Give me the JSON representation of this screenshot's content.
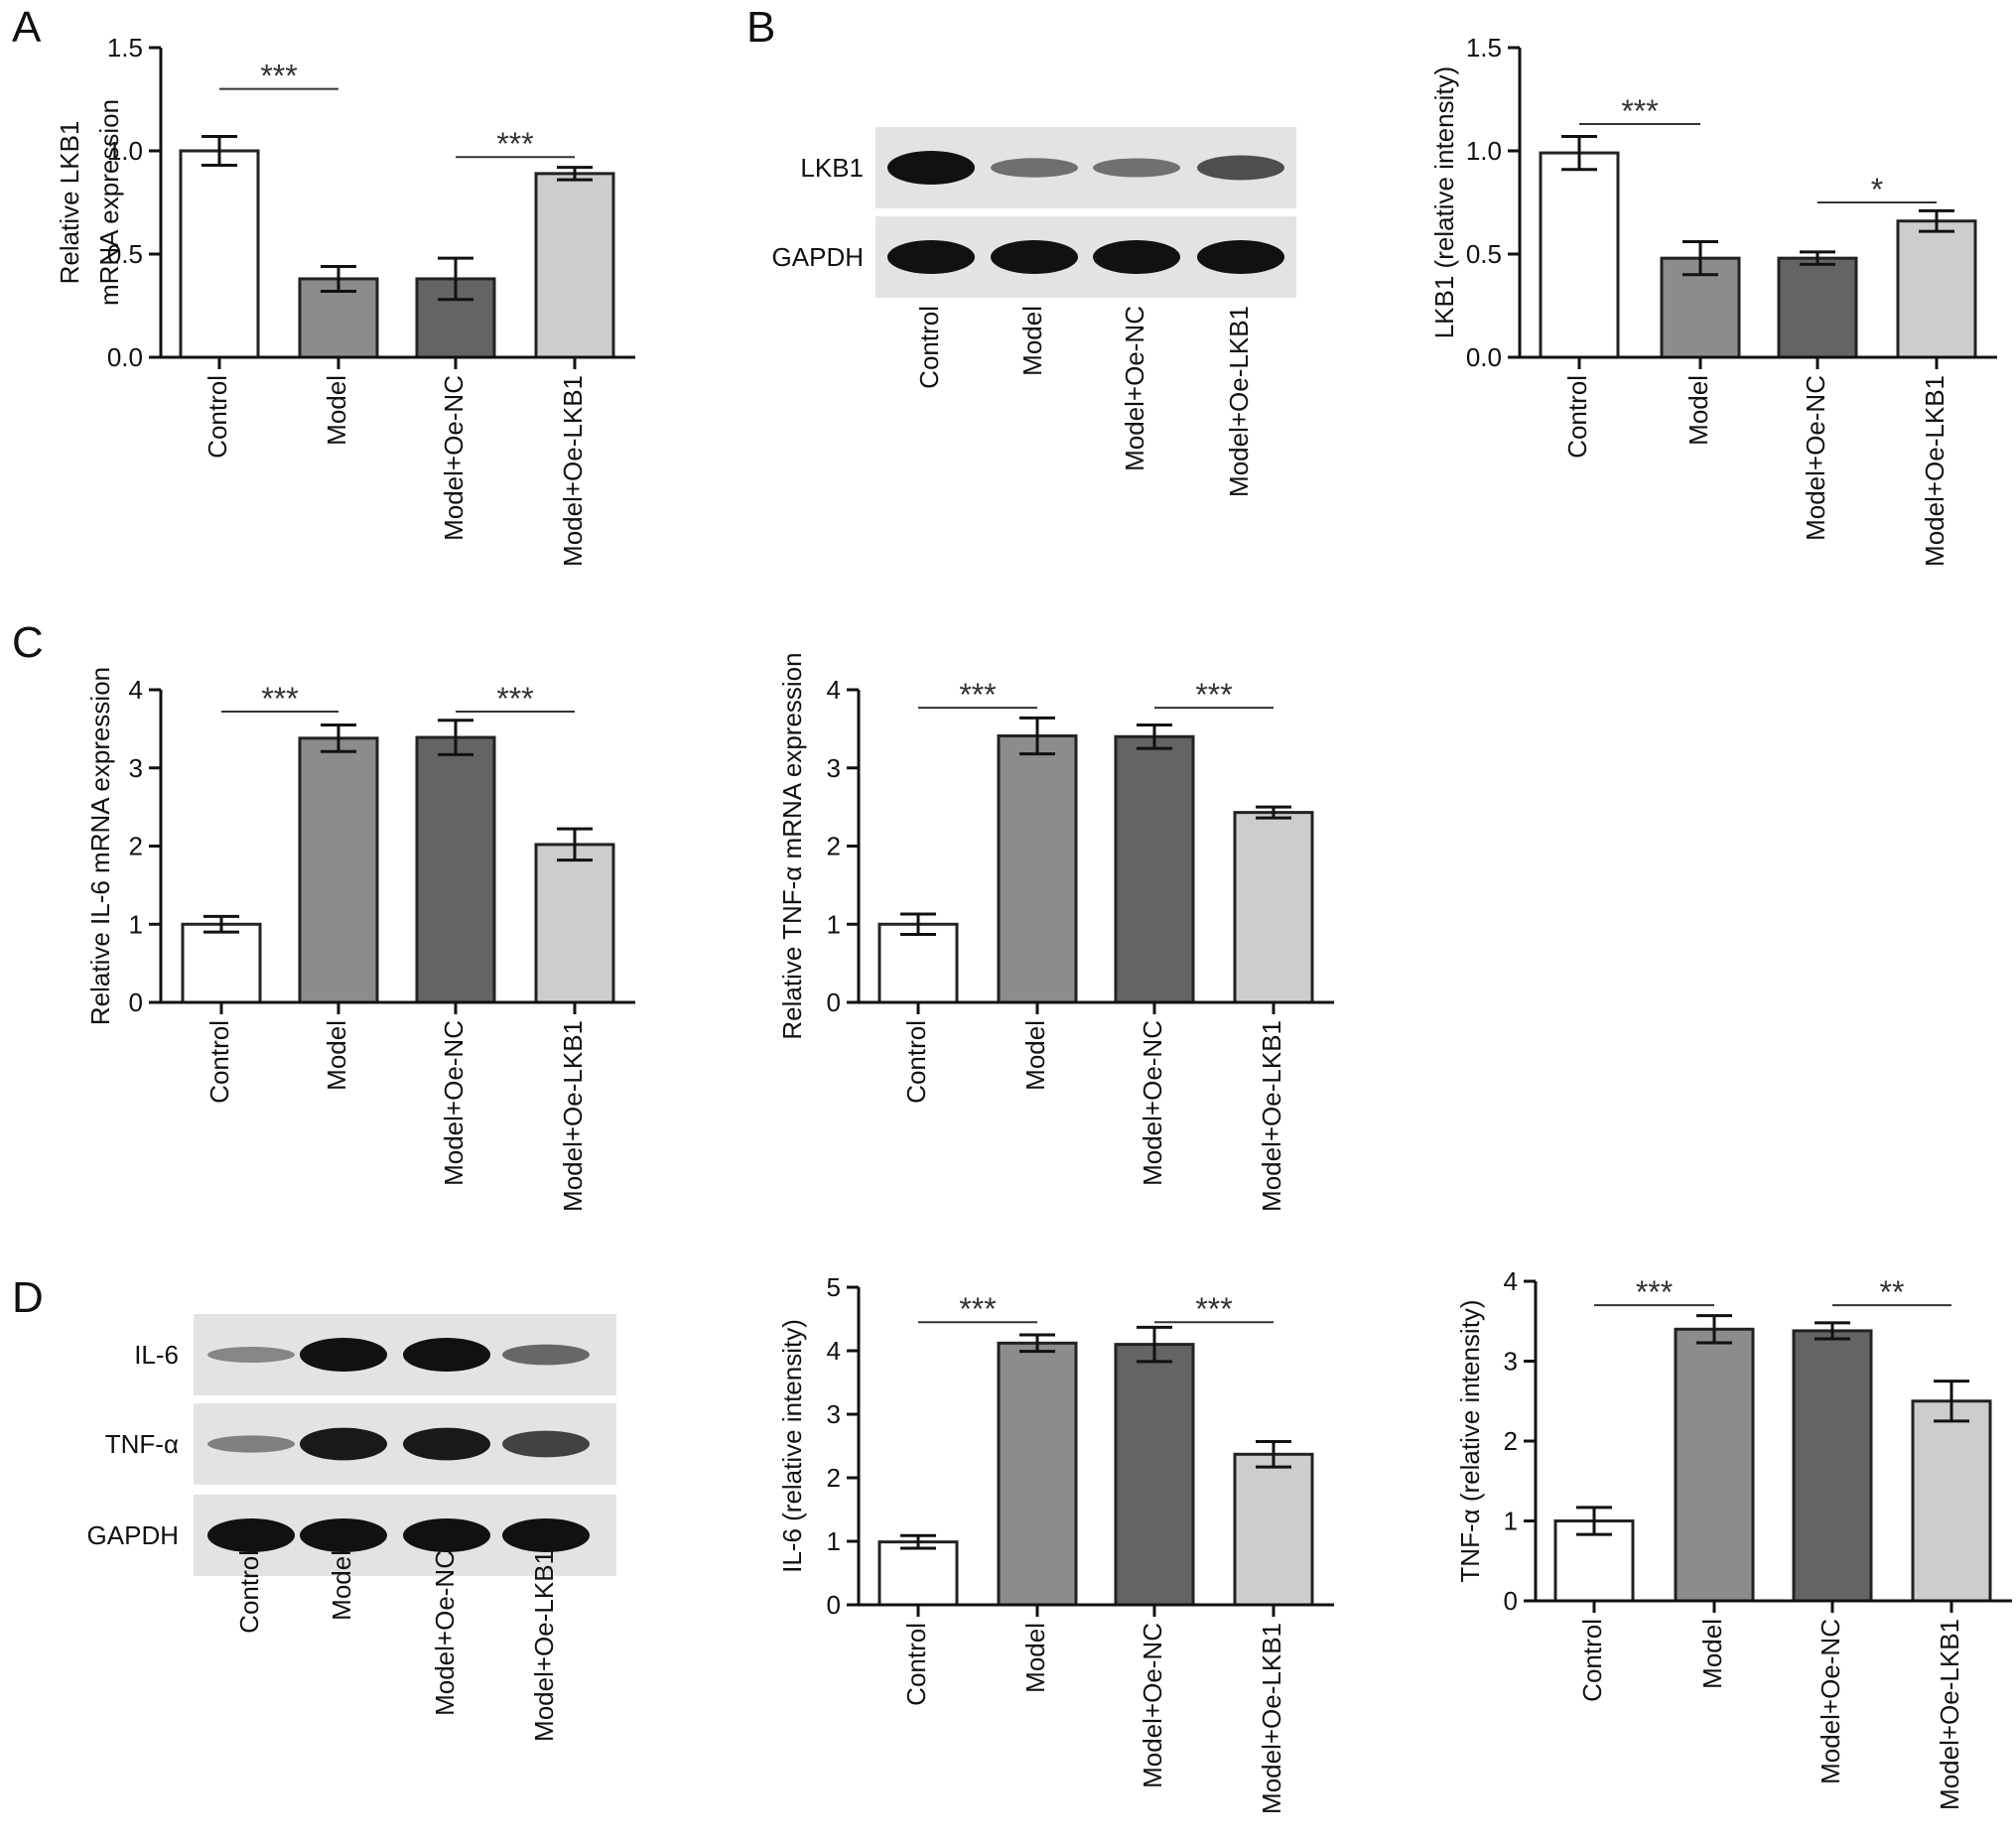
{
  "colors": {
    "Control": "#ffffff",
    "Model": "#8c8c8c",
    "Model+Oe-NC": "#646464",
    "Model+Oe-LKB1": "#cdcdcd",
    "axis": "#111111",
    "bar_stroke": "#222222",
    "blot_background": "#e3e3e3",
    "band": "#111111"
  },
  "panels": [
    {
      "id": "A",
      "label": "A"
    },
    {
      "id": "B",
      "label": "B"
    },
    {
      "id": "C",
      "label": "C"
    },
    {
      "id": "D",
      "label": "D"
    }
  ],
  "blots": [
    {
      "id": "B-blot",
      "panel": "B",
      "lanes": [
        "Control",
        "Model",
        "Model+Oe-NC",
        "Model+Oe-LKB1"
      ],
      "rows": [
        {
          "protein": "LKB1",
          "intensity": [
            1.0,
            0.4,
            0.38,
            0.62
          ]
        },
        {
          "protein": "GAPDH",
          "intensity": [
            1.0,
            1.0,
            1.0,
            1.0
          ]
        }
      ]
    },
    {
      "id": "D-blot",
      "panel": "D",
      "lanes": [
        "Control",
        "Model",
        "Model+Oe-NC",
        "Model+Oe-LKB1"
      ],
      "rows": [
        {
          "protein": "IL-6",
          "intensity": [
            0.25,
            1.0,
            1.0,
            0.45
          ]
        },
        {
          "protein": "TNF-α",
          "intensity": [
            0.3,
            0.95,
            0.95,
            0.7
          ]
        },
        {
          "protein": "GAPDH",
          "intensity": [
            1.0,
            1.0,
            1.0,
            1.0
          ]
        }
      ]
    }
  ],
  "chart_data": [
    {
      "id": "A",
      "type": "bar",
      "categories": [
        "Control",
        "Model",
        "Model+Oe-NC",
        "Model+Oe-LKB1"
      ],
      "values": [
        1.0,
        0.38,
        0.38,
        0.89
      ],
      "errors": [
        0.07,
        0.06,
        0.1,
        0.03
      ],
      "ylabel": [
        "Relative LKB1",
        "mRNA expression"
      ],
      "ylim": [
        0,
        1.5
      ],
      "yticks": [
        0.0,
        0.5,
        1.0,
        1.5
      ],
      "ytick_labels": [
        "0.0",
        "0.5",
        "1.0",
        "1.5"
      ],
      "significance": [
        {
          "from": 0,
          "to": 1,
          "label": "***",
          "level": 1.3
        },
        {
          "from": 2,
          "to": 3,
          "label": "***",
          "level": 0.97
        }
      ]
    },
    {
      "id": "B",
      "type": "bar",
      "categories": [
        "Control",
        "Model",
        "Model+Oe-NC",
        "Model+Oe-LKB1"
      ],
      "values": [
        0.99,
        0.48,
        0.48,
        0.66
      ],
      "errors": [
        0.08,
        0.08,
        0.03,
        0.05
      ],
      "ylabel": [
        "LKB1  (relative intensity)"
      ],
      "ylim": [
        0,
        1.5
      ],
      "yticks": [
        0.0,
        0.5,
        1.0,
        1.5
      ],
      "ytick_labels": [
        "0.0",
        "0.5",
        "1.0",
        "1.5"
      ],
      "significance": [
        {
          "from": 0,
          "to": 1,
          "label": "***",
          "level": 1.13
        },
        {
          "from": 2,
          "to": 3,
          "label": "*",
          "level": 0.75
        }
      ]
    },
    {
      "id": "C-IL6",
      "type": "bar",
      "categories": [
        "Control",
        "Model",
        "Model+Oe-NC",
        "Model+Oe-LKB1"
      ],
      "values": [
        1.0,
        3.38,
        3.39,
        2.02
      ],
      "errors": [
        0.1,
        0.17,
        0.22,
        0.2
      ],
      "ylabel": [
        "Relative IL-6 mRNA expression"
      ],
      "ylim": [
        0,
        4
      ],
      "yticks": [
        0,
        1,
        2,
        3,
        4
      ],
      "ytick_labels": [
        "0",
        "1",
        "2",
        "3",
        "4"
      ],
      "significance": [
        {
          "from": 0,
          "to": 1,
          "label": "***",
          "level": 3.72
        },
        {
          "from": 2,
          "to": 3,
          "label": "***",
          "level": 3.72
        }
      ]
    },
    {
      "id": "C-TNFa",
      "type": "bar",
      "categories": [
        "Control",
        "Model",
        "Model+Oe-NC",
        "Model+Oe-LKB1"
      ],
      "values": [
        1.0,
        3.41,
        3.4,
        2.43
      ],
      "errors": [
        0.13,
        0.23,
        0.15,
        0.07
      ],
      "ylabel": [
        "Relative TNF-α mRNA expression"
      ],
      "ylim": [
        0,
        4
      ],
      "yticks": [
        0,
        1,
        2,
        3,
        4
      ],
      "ytick_labels": [
        "0",
        "1",
        "2",
        "3",
        "4"
      ],
      "significance": [
        {
          "from": 0,
          "to": 1,
          "label": "***",
          "level": 3.77
        },
        {
          "from": 2,
          "to": 3,
          "label": "***",
          "level": 3.77
        }
      ]
    },
    {
      "id": "D-IL6",
      "type": "bar",
      "categories": [
        "Control",
        "Model",
        "Model+Oe-NC",
        "Model+Oe-LKB1"
      ],
      "values": [
        0.99,
        4.12,
        4.1,
        2.37
      ],
      "errors": [
        0.1,
        0.13,
        0.27,
        0.2
      ],
      "ylabel": [
        "IL-6  (relative intensity)"
      ],
      "ylim": [
        0,
        5
      ],
      "yticks": [
        0,
        1,
        2,
        3,
        4,
        5
      ],
      "ytick_labels": [
        "0",
        "1",
        "2",
        "3",
        "4",
        "5"
      ],
      "significance": [
        {
          "from": 0,
          "to": 1,
          "label": "***",
          "level": 4.45
        },
        {
          "from": 2,
          "to": 3,
          "label": "***",
          "level": 4.45
        }
      ]
    },
    {
      "id": "D-TNFa",
      "type": "bar",
      "categories": [
        "Control",
        "Model",
        "Model+Oe-NC",
        "Model+Oe-LKB1"
      ],
      "values": [
        1.0,
        3.4,
        3.38,
        2.5
      ],
      "errors": [
        0.17,
        0.17,
        0.1,
        0.25
      ],
      "ylabel": [
        "TNF-α  (relative intensity)"
      ],
      "ylim": [
        0,
        4
      ],
      "yticks": [
        0,
        1,
        2,
        3,
        4
      ],
      "ytick_labels": [
        "0",
        "1",
        "2",
        "3",
        "4"
      ],
      "significance": [
        {
          "from": 0,
          "to": 1,
          "label": "***",
          "level": 3.7
        },
        {
          "from": 2,
          "to": 3,
          "label": "**",
          "level": 3.7
        }
      ]
    }
  ]
}
